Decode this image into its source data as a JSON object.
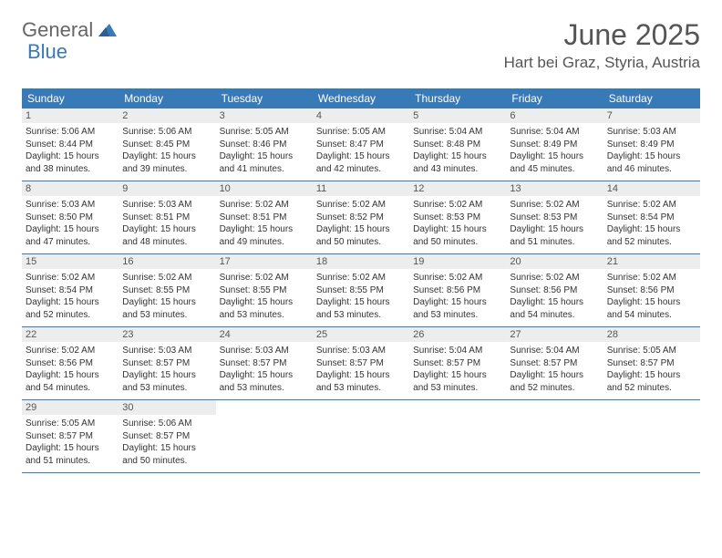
{
  "brand": {
    "general": "General",
    "blue": "Blue",
    "logo_color": "#3879b8"
  },
  "header": {
    "title": "June 2025",
    "location": "Hart bei Graz, Styria, Austria"
  },
  "colors": {
    "header_bg": "#3879b8",
    "header_text": "#ffffff",
    "daynum_bg": "#ededed",
    "row_border": "#3879b8",
    "text": "#333333",
    "title_text": "#555555"
  },
  "weekdays": [
    "Sunday",
    "Monday",
    "Tuesday",
    "Wednesday",
    "Thursday",
    "Friday",
    "Saturday"
  ],
  "weeks": [
    [
      {
        "n": "1",
        "sunrise": "Sunrise: 5:06 AM",
        "sunset": "Sunset: 8:44 PM",
        "d1": "Daylight: 15 hours",
        "d2": "and 38 minutes."
      },
      {
        "n": "2",
        "sunrise": "Sunrise: 5:06 AM",
        "sunset": "Sunset: 8:45 PM",
        "d1": "Daylight: 15 hours",
        "d2": "and 39 minutes."
      },
      {
        "n": "3",
        "sunrise": "Sunrise: 5:05 AM",
        "sunset": "Sunset: 8:46 PM",
        "d1": "Daylight: 15 hours",
        "d2": "and 41 minutes."
      },
      {
        "n": "4",
        "sunrise": "Sunrise: 5:05 AM",
        "sunset": "Sunset: 8:47 PM",
        "d1": "Daylight: 15 hours",
        "d2": "and 42 minutes."
      },
      {
        "n": "5",
        "sunrise": "Sunrise: 5:04 AM",
        "sunset": "Sunset: 8:48 PM",
        "d1": "Daylight: 15 hours",
        "d2": "and 43 minutes."
      },
      {
        "n": "6",
        "sunrise": "Sunrise: 5:04 AM",
        "sunset": "Sunset: 8:49 PM",
        "d1": "Daylight: 15 hours",
        "d2": "and 45 minutes."
      },
      {
        "n": "7",
        "sunrise": "Sunrise: 5:03 AM",
        "sunset": "Sunset: 8:49 PM",
        "d1": "Daylight: 15 hours",
        "d2": "and 46 minutes."
      }
    ],
    [
      {
        "n": "8",
        "sunrise": "Sunrise: 5:03 AM",
        "sunset": "Sunset: 8:50 PM",
        "d1": "Daylight: 15 hours",
        "d2": "and 47 minutes."
      },
      {
        "n": "9",
        "sunrise": "Sunrise: 5:03 AM",
        "sunset": "Sunset: 8:51 PM",
        "d1": "Daylight: 15 hours",
        "d2": "and 48 minutes."
      },
      {
        "n": "10",
        "sunrise": "Sunrise: 5:02 AM",
        "sunset": "Sunset: 8:51 PM",
        "d1": "Daylight: 15 hours",
        "d2": "and 49 minutes."
      },
      {
        "n": "11",
        "sunrise": "Sunrise: 5:02 AM",
        "sunset": "Sunset: 8:52 PM",
        "d1": "Daylight: 15 hours",
        "d2": "and 50 minutes."
      },
      {
        "n": "12",
        "sunrise": "Sunrise: 5:02 AM",
        "sunset": "Sunset: 8:53 PM",
        "d1": "Daylight: 15 hours",
        "d2": "and 50 minutes."
      },
      {
        "n": "13",
        "sunrise": "Sunrise: 5:02 AM",
        "sunset": "Sunset: 8:53 PM",
        "d1": "Daylight: 15 hours",
        "d2": "and 51 minutes."
      },
      {
        "n": "14",
        "sunrise": "Sunrise: 5:02 AM",
        "sunset": "Sunset: 8:54 PM",
        "d1": "Daylight: 15 hours",
        "d2": "and 52 minutes."
      }
    ],
    [
      {
        "n": "15",
        "sunrise": "Sunrise: 5:02 AM",
        "sunset": "Sunset: 8:54 PM",
        "d1": "Daylight: 15 hours",
        "d2": "and 52 minutes."
      },
      {
        "n": "16",
        "sunrise": "Sunrise: 5:02 AM",
        "sunset": "Sunset: 8:55 PM",
        "d1": "Daylight: 15 hours",
        "d2": "and 53 minutes."
      },
      {
        "n": "17",
        "sunrise": "Sunrise: 5:02 AM",
        "sunset": "Sunset: 8:55 PM",
        "d1": "Daylight: 15 hours",
        "d2": "and 53 minutes."
      },
      {
        "n": "18",
        "sunrise": "Sunrise: 5:02 AM",
        "sunset": "Sunset: 8:55 PM",
        "d1": "Daylight: 15 hours",
        "d2": "and 53 minutes."
      },
      {
        "n": "19",
        "sunrise": "Sunrise: 5:02 AM",
        "sunset": "Sunset: 8:56 PM",
        "d1": "Daylight: 15 hours",
        "d2": "and 53 minutes."
      },
      {
        "n": "20",
        "sunrise": "Sunrise: 5:02 AM",
        "sunset": "Sunset: 8:56 PM",
        "d1": "Daylight: 15 hours",
        "d2": "and 54 minutes."
      },
      {
        "n": "21",
        "sunrise": "Sunrise: 5:02 AM",
        "sunset": "Sunset: 8:56 PM",
        "d1": "Daylight: 15 hours",
        "d2": "and 54 minutes."
      }
    ],
    [
      {
        "n": "22",
        "sunrise": "Sunrise: 5:02 AM",
        "sunset": "Sunset: 8:56 PM",
        "d1": "Daylight: 15 hours",
        "d2": "and 54 minutes."
      },
      {
        "n": "23",
        "sunrise": "Sunrise: 5:03 AM",
        "sunset": "Sunset: 8:57 PM",
        "d1": "Daylight: 15 hours",
        "d2": "and 53 minutes."
      },
      {
        "n": "24",
        "sunrise": "Sunrise: 5:03 AM",
        "sunset": "Sunset: 8:57 PM",
        "d1": "Daylight: 15 hours",
        "d2": "and 53 minutes."
      },
      {
        "n": "25",
        "sunrise": "Sunrise: 5:03 AM",
        "sunset": "Sunset: 8:57 PM",
        "d1": "Daylight: 15 hours",
        "d2": "and 53 minutes."
      },
      {
        "n": "26",
        "sunrise": "Sunrise: 5:04 AM",
        "sunset": "Sunset: 8:57 PM",
        "d1": "Daylight: 15 hours",
        "d2": "and 53 minutes."
      },
      {
        "n": "27",
        "sunrise": "Sunrise: 5:04 AM",
        "sunset": "Sunset: 8:57 PM",
        "d1": "Daylight: 15 hours",
        "d2": "and 52 minutes."
      },
      {
        "n": "28",
        "sunrise": "Sunrise: 5:05 AM",
        "sunset": "Sunset: 8:57 PM",
        "d1": "Daylight: 15 hours",
        "d2": "and 52 minutes."
      }
    ],
    [
      {
        "n": "29",
        "sunrise": "Sunrise: 5:05 AM",
        "sunset": "Sunset: 8:57 PM",
        "d1": "Daylight: 15 hours",
        "d2": "and 51 minutes."
      },
      {
        "n": "30",
        "sunrise": "Sunrise: 5:06 AM",
        "sunset": "Sunset: 8:57 PM",
        "d1": "Daylight: 15 hours",
        "d2": "and 50 minutes."
      },
      null,
      null,
      null,
      null,
      null
    ]
  ]
}
